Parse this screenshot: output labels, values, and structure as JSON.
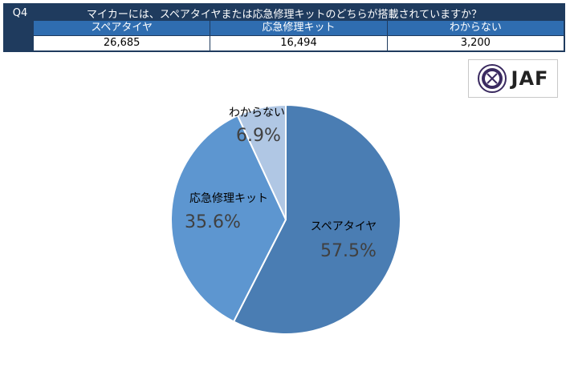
{
  "table": {
    "question_no": "Q4",
    "question": "マイカーには、スペアタイヤまたは応急修理キットのどちらが搭載されていますか？",
    "columns": [
      {
        "label": "スペアタイヤ",
        "value": "26,685"
      },
      {
        "label": "応急修理キット",
        "value": "16,494"
      },
      {
        "label": "わからない",
        "value": "3,200"
      }
    ]
  },
  "logo": {
    "text": "JAF",
    "icon": "jaf-emblem-icon"
  },
  "chart_data": {
    "type": "pie",
    "slices": [
      {
        "label": "スペアタイヤ",
        "value": 57.5,
        "text": "57.5%",
        "color": "#4a7db3"
      },
      {
        "label": "応急修理キット",
        "value": 35.6,
        "text": "35.6%",
        "color": "#5d96d0"
      },
      {
        "label": "わからない",
        "value": 6.9,
        "text": "6.9%",
        "color": "#b0c7e4"
      }
    ]
  }
}
